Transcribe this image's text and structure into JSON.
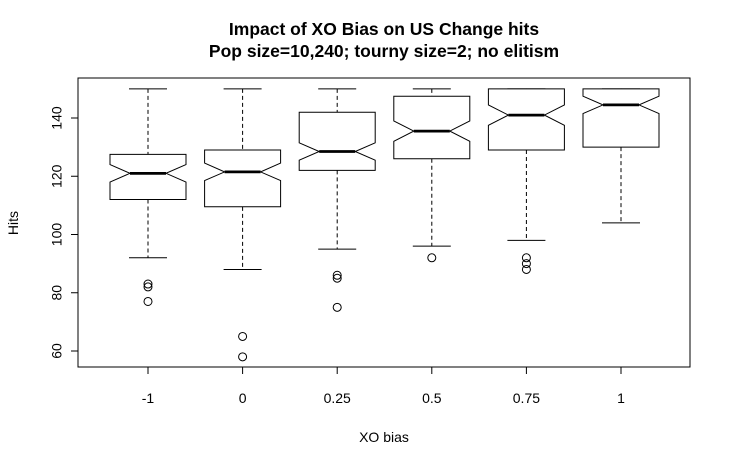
{
  "chart_data": {
    "type": "boxplot",
    "title": "Impact of XO Bias on US Change hits",
    "subtitle": "Pop size=10,240; tourny size=2; no elitism",
    "xlabel": "XO bias",
    "ylabel": "Hits",
    "categories": [
      "-1",
      "0",
      "0.25",
      "0.5",
      "0.75",
      "1"
    ],
    "yticks": [
      60,
      80,
      100,
      120,
      140
    ],
    "ylim": [
      54,
      152
    ],
    "notched": true,
    "grid": false,
    "boxes": [
      {
        "category": "-1",
        "whisker_low": 92,
        "q1": 112,
        "median": 121,
        "q3": 127.5,
        "whisker_high": 150,
        "notch_low": 118,
        "notch_high": 124,
        "outliers": [
          83,
          82,
          77
        ]
      },
      {
        "category": "0",
        "whisker_low": 88,
        "q1": 109.5,
        "median": 121.5,
        "q3": 129,
        "whisker_high": 150,
        "notch_low": 118.5,
        "notch_high": 124.5,
        "outliers": [
          65,
          58
        ]
      },
      {
        "category": "0.25",
        "whisker_low": 95,
        "q1": 122,
        "median": 128.5,
        "q3": 142,
        "whisker_high": 150,
        "notch_low": 125.5,
        "notch_high": 131.5,
        "outliers": [
          86,
          85,
          75
        ]
      },
      {
        "category": "0.5",
        "whisker_low": 96,
        "q1": 126,
        "median": 135.5,
        "q3": 147.5,
        "whisker_high": 150,
        "notch_low": 132,
        "notch_high": 139,
        "outliers": [
          92
        ]
      },
      {
        "category": "0.75",
        "whisker_low": 98,
        "q1": 129,
        "median": 141,
        "q3": 150,
        "whisker_high": 150,
        "notch_low": 137.5,
        "notch_high": 144.5,
        "outliers": [
          92,
          90,
          88
        ]
      },
      {
        "category": "1",
        "whisker_low": 104,
        "q1": 130,
        "median": 144.5,
        "q3": 150,
        "whisker_high": 150,
        "notch_low": 141.5,
        "notch_high": 147.5,
        "outliers": []
      }
    ]
  }
}
